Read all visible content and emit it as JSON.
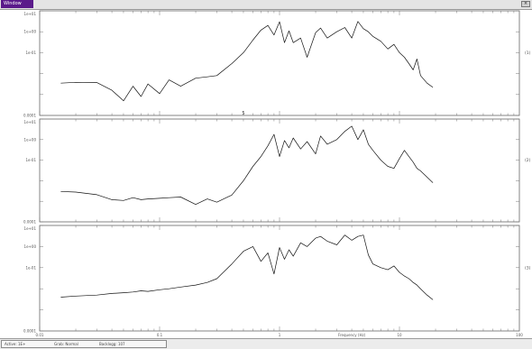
{
  "window": {
    "title": "Window"
  },
  "colors": {
    "titlebar_accent": "#5a1a8a",
    "trace": "#111111",
    "frame": "#666666"
  },
  "icons": {
    "close": "close-icon"
  },
  "status": {
    "items": [
      "Active: 1E+",
      "Grab: Normal",
      "Backlogg: 107"
    ]
  },
  "chart_data": [
    {
      "type": "line",
      "x_scale": "log",
      "y_scale": "log",
      "xlim": [
        0.01,
        100
      ],
      "ylim": [
        0.0001,
        10.0
      ],
      "ytick_labels": [
        "1e+01",
        "1e+00",
        "1e-01",
        "0.0001"
      ],
      "right_label": "(1)",
      "marker": "5",
      "series": [
        {
          "x": [
            0.015,
            0.02,
            0.03,
            0.04,
            0.05,
            0.06,
            0.07,
            0.08,
            0.1,
            0.12,
            0.15,
            0.2,
            0.25,
            0.3,
            0.4,
            0.5,
            0.6,
            0.7,
            0.8,
            0.9,
            1.0,
            1.1,
            1.2,
            1.3,
            1.5,
            1.7,
            2.0,
            2.2,
            2.5,
            3.0,
            3.5,
            4.0,
            4.5,
            5.0,
            5.5,
            6.0,
            7.0,
            8.0,
            9.0,
            10,
            11,
            12,
            13,
            14,
            15,
            17,
            19
          ],
          "y": [
            0.0035,
            0.0038,
            0.0037,
            0.0016,
            0.0005,
            0.0025,
            0.0008,
            0.0032,
            0.0011,
            0.005,
            0.0025,
            0.006,
            0.007,
            0.008,
            0.03,
            0.1,
            0.4,
            1.2,
            2.0,
            0.7,
            3.0,
            0.3,
            1.1,
            0.3,
            0.5,
            0.06,
            0.9,
            1.5,
            0.5,
            1.0,
            1.6,
            0.5,
            3.1,
            1.4,
            1.0,
            0.6,
            0.35,
            0.15,
            0.25,
            0.1,
            0.06,
            0.03,
            0.015,
            0.05,
            0.008,
            0.0035,
            0.0022
          ]
        }
      ]
    },
    {
      "type": "line",
      "x_scale": "log",
      "y_scale": "log",
      "xlim": [
        0.01,
        100
      ],
      "ylim": [
        0.0001,
        10.0
      ],
      "ytick_labels": [
        "1e+01",
        "1e+00",
        "1e-01",
        "0.0001"
      ],
      "right_label": "(2)",
      "series": [
        {
          "x": [
            0.015,
            0.02,
            0.03,
            0.04,
            0.05,
            0.06,
            0.07,
            0.08,
            0.1,
            0.12,
            0.15,
            0.2,
            0.25,
            0.3,
            0.4,
            0.5,
            0.6,
            0.7,
            0.8,
            0.9,
            1.0,
            1.1,
            1.2,
            1.3,
            1.5,
            1.7,
            2.0,
            2.2,
            2.5,
            3.0,
            3.5,
            4.0,
            4.5,
            5.0,
            5.5,
            6.0,
            7.0,
            8.0,
            9.0,
            10,
            11,
            12,
            13,
            14,
            15,
            17,
            19
          ],
          "y": [
            0.003,
            0.0028,
            0.0021,
            0.0012,
            0.0011,
            0.0015,
            0.0012,
            0.0013,
            0.0014,
            0.0015,
            0.0016,
            0.0007,
            0.0013,
            0.0009,
            0.002,
            0.01,
            0.05,
            0.15,
            0.5,
            1.8,
            0.15,
            0.9,
            0.4,
            1.2,
            0.35,
            0.8,
            0.2,
            1.5,
            0.6,
            1.0,
            2.5,
            4.5,
            1.0,
            3.0,
            0.6,
            0.3,
            0.1,
            0.05,
            0.04,
            0.12,
            0.3,
            0.15,
            0.08,
            0.04,
            0.03,
            0.015,
            0.008
          ]
        }
      ]
    },
    {
      "type": "line",
      "x_scale": "log",
      "y_scale": "log",
      "xlim": [
        0.01,
        100
      ],
      "ylim": [
        0.0001,
        10.0
      ],
      "ytick_labels": [
        "1e+01",
        "1e+00",
        "1e-01",
        "0.0001"
      ],
      "right_label": "(3)",
      "xtick_labels": [
        "0.01",
        "0.1",
        "1",
        "10",
        "100"
      ],
      "xlabel": "Frequency (Hz)",
      "series": [
        {
          "x": [
            0.015,
            0.02,
            0.03,
            0.04,
            0.05,
            0.06,
            0.07,
            0.08,
            0.1,
            0.12,
            0.15,
            0.2,
            0.25,
            0.3,
            0.4,
            0.5,
            0.6,
            0.7,
            0.8,
            0.9,
            1.0,
            1.1,
            1.2,
            1.3,
            1.5,
            1.7,
            2.0,
            2.2,
            2.5,
            3.0,
            3.5,
            4.0,
            4.5,
            5.0,
            5.5,
            6.0,
            7.0,
            8.0,
            9.0,
            10,
            11,
            12,
            13,
            14,
            15,
            17,
            19
          ],
          "y": [
            0.004,
            0.0045,
            0.005,
            0.006,
            0.0065,
            0.007,
            0.008,
            0.0075,
            0.009,
            0.01,
            0.012,
            0.015,
            0.02,
            0.03,
            0.15,
            0.6,
            1.0,
            0.2,
            0.5,
            0.05,
            0.9,
            0.25,
            0.7,
            0.35,
            1.5,
            1.0,
            2.5,
            3.0,
            1.8,
            1.2,
            3.5,
            2.0,
            3.0,
            3.5,
            0.4,
            0.15,
            0.1,
            0.08,
            0.12,
            0.06,
            0.04,
            0.03,
            0.02,
            0.015,
            0.01,
            0.005,
            0.003
          ]
        }
      ]
    }
  ]
}
